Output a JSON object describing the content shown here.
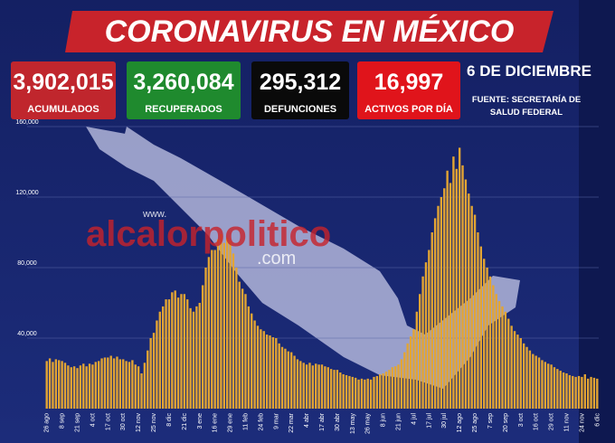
{
  "header": {
    "title": "CORONAVIRUS EN MÉXICO",
    "date": "6 DE DICIEMBRE",
    "source": [
      "FUENTE: SECRETARÍA DE",
      "SALUD FEDERAL"
    ],
    "stats": [
      {
        "value": "3,902,015",
        "label": "ACUMULADOS",
        "color": "#c0262d"
      },
      {
        "value": "3,260,084",
        "label": "RECUPERADOS",
        "color": "#1f8a2e"
      },
      {
        "value": "295,312",
        "label": "DEFUNCIONES",
        "color": "#0a0a0a"
      },
      {
        "value": "16,997",
        "label": "ACTIVOS POR DÍA",
        "color": "#e0141b"
      }
    ]
  },
  "watermark": {
    "www": "www.",
    "name": "alcalorpolitico",
    "domain": ".com"
  },
  "chart_data": {
    "type": "bar",
    "color": "#e3a533",
    "grid": true,
    "ylim": [
      0,
      160000
    ],
    "yticks": [
      {
        "value": 40000,
        "label": "40,000"
      },
      {
        "value": 80000,
        "label": "80,000"
      },
      {
        "value": 120000,
        "label": "120,000"
      },
      {
        "value": 160000,
        "label": "160,000"
      }
    ],
    "categories": [
      "26 ago",
      null,
      null,
      null,
      null,
      "8 sep",
      null,
      null,
      null,
      null,
      "21 sep",
      null,
      null,
      null,
      null,
      "4 oct",
      null,
      null,
      null,
      null,
      "17 oct",
      null,
      null,
      null,
      null,
      "30 oct",
      null,
      null,
      null,
      null,
      "12 nov",
      null,
      null,
      null,
      null,
      "25 nov",
      null,
      null,
      null,
      null,
      "8 dic",
      null,
      null,
      null,
      null,
      "21 dic",
      null,
      null,
      null,
      null,
      "3 ene",
      null,
      null,
      null,
      null,
      "16 ene",
      null,
      null,
      null,
      null,
      "29 ene",
      null,
      null,
      null,
      null,
      "11 feb",
      null,
      null,
      null,
      null,
      "24 feb",
      null,
      null,
      null,
      null,
      "9 mar",
      null,
      null,
      null,
      null,
      "22 mar",
      null,
      null,
      null,
      null,
      "4 abr",
      null,
      null,
      null,
      null,
      "17 abr",
      null,
      null,
      null,
      null,
      "30 abr",
      null,
      null,
      null,
      null,
      "13 may",
      null,
      null,
      null,
      null,
      "26 may",
      null,
      null,
      null,
      null,
      "8 jun",
      null,
      null,
      null,
      null,
      "21 jun",
      null,
      null,
      null,
      null,
      "4 jul",
      null,
      null,
      null,
      null,
      "17 jul",
      null,
      null,
      null,
      null,
      "30 jul",
      null,
      null,
      null,
      null,
      "12 ago",
      null,
      null,
      null,
      null,
      "25 ago",
      null,
      null,
      null,
      null,
      "7 sep",
      null,
      null,
      null,
      null,
      "20 sep",
      null,
      null,
      null,
      null,
      "3 oct",
      null,
      null,
      null,
      null,
      "16 oct",
      null,
      null,
      null,
      null,
      "29 oct",
      null,
      null,
      null,
      null,
      "11 nov",
      null,
      null,
      null,
      null,
      "24 nov",
      null,
      null,
      null,
      null,
      "6 dic"
    ],
    "values": [
      27000,
      28500,
      26500,
      28000,
      27500,
      27000,
      26000,
      24500,
      23500,
      24000,
      23000,
      24500,
      25500,
      24000,
      25500,
      25000,
      26500,
      27000,
      28500,
      29000,
      29000,
      30000,
      28500,
      29500,
      28000,
      28000,
      27000,
      26500,
      27500,
      25000,
      24000,
      20000,
      26000,
      33000,
      40000,
      43000,
      50000,
      55000,
      58000,
      62000,
      62000,
      66000,
      67000,
      63000,
      65000,
      65000,
      62000,
      57000,
      55000,
      58000,
      60000,
      70000,
      80000,
      86000,
      90000,
      90000,
      96000,
      99000,
      94000,
      97000,
      95000,
      88000,
      80000,
      72000,
      68000,
      65000,
      58000,
      54000,
      50000,
      47000,
      45000,
      44000,
      42000,
      41500,
      40500,
      40000,
      37000,
      35000,
      34000,
      32500,
      32000,
      30000,
      28000,
      27000,
      26000,
      25000,
      26000,
      24500,
      25500,
      25000,
      25000,
      24000,
      23500,
      22500,
      22000,
      22000,
      20500,
      19500,
      19000,
      18500,
      18000,
      17500,
      16500,
      17000,
      16500,
      17000,
      16500,
      18000,
      18500,
      19500,
      20000,
      21000,
      22000,
      23500,
      24000,
      25000,
      28000,
      32000,
      37000,
      41000,
      45000,
      55000,
      65000,
      75000,
      83000,
      90000,
      100000,
      108000,
      115000,
      120000,
      125000,
      135000,
      128000,
      143000,
      136000,
      148000,
      138000,
      130000,
      122000,
      115000,
      110000,
      100000,
      92000,
      85000,
      80000,
      75000,
      70000,
      65000,
      61000,
      58000,
      55000,
      51000,
      47000,
      44000,
      42000,
      40000,
      37000,
      35000,
      33000,
      31000,
      30000,
      29000,
      27500,
      26500,
      25500,
      25000,
      23500,
      22500,
      21500,
      20500,
      20000,
      19000,
      18500,
      18000,
      18500,
      18000,
      19500,
      17000,
      18000,
      17500,
      17000
    ]
  }
}
